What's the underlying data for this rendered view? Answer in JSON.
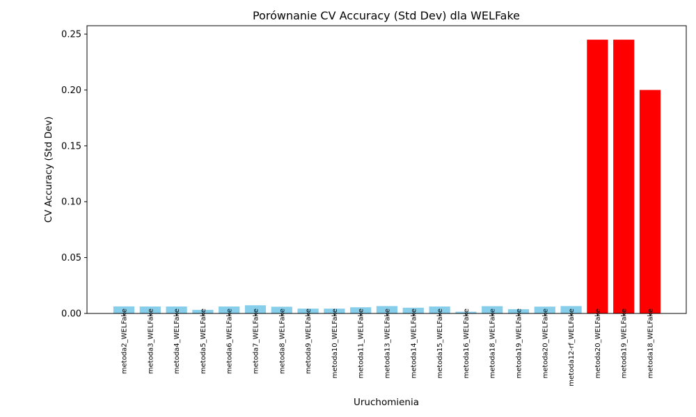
{
  "chart_data": {
    "type": "bar",
    "title": "Porównanie CV Accuracy (Std Dev) dla WELFake",
    "xlabel": "Uruchomienia",
    "ylabel": "CV Accuracy (Std Dev)",
    "ylim": [
      0,
      0.2575
    ],
    "yticks": [
      "0.00",
      "0.05",
      "0.10",
      "0.15",
      "0.20",
      "0.25"
    ],
    "ytick_values": [
      0,
      0.05,
      0.1,
      0.15,
      0.2,
      0.25
    ],
    "grid": false,
    "categories": [
      "metoda2_WELFake",
      "metoda3_WELFake",
      "metoda4_WELFake",
      "metoda5_WELFake",
      "metoda6_WELFake",
      "metoda7_WELFake",
      "metoda8_WELFake",
      "metoda9_WELFake",
      "metoda10_WELFake",
      "metoda11_WELFake",
      "metoda13_WELFake",
      "metoda14_WELFake",
      "metoda15_WELFake",
      "metoda16_WELFake",
      "metoda18_WELFake",
      "metoda19_WELFake",
      "metoda20_WELFake",
      "metoda12-rf_WELFake",
      "metoda20_WELFake",
      "metoda19_WELFake",
      "metoda18_WELFake"
    ],
    "values": [
      0.0063,
      0.0062,
      0.0062,
      0.0032,
      0.0062,
      0.0073,
      0.006,
      0.0043,
      0.0043,
      0.0055,
      0.0066,
      0.0051,
      0.0062,
      0.0015,
      0.0065,
      0.0038,
      0.0061,
      0.0066,
      0.245,
      0.245,
      0.2
    ],
    "colors": [
      "#87ceeb",
      "#87ceeb",
      "#87ceeb",
      "#87ceeb",
      "#87ceeb",
      "#87ceeb",
      "#87ceeb",
      "#87ceeb",
      "#87ceeb",
      "#87ceeb",
      "#87ceeb",
      "#87ceeb",
      "#87ceeb",
      "#87ceeb",
      "#87ceeb",
      "#87ceeb",
      "#87ceeb",
      "#87ceeb",
      "#ff0000",
      "#ff0000",
      "#ff0000"
    ]
  }
}
